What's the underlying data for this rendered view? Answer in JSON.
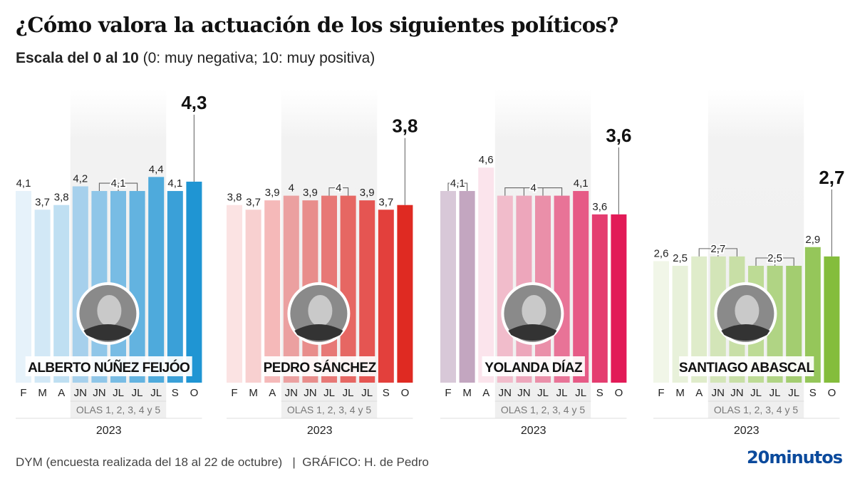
{
  "header": {
    "title": "¿Cómo valora la actuación de los siguientes políticos?",
    "subtitle_bold": "Escala del 0 al 10",
    "subtitle_rest": " (0: muy negativa; 10: muy positiva)"
  },
  "footer": {
    "source": "DYM (encuesta realizada del 18 al 22 de octubre)   |  GRÁFICO: H. de Pedro",
    "logo": "20minutos"
  },
  "chart_data": [
    {
      "type": "bar",
      "name": "ALBERTO NÚÑEZ FEIJÓO",
      "categories": [
        "F",
        "M",
        "A",
        "JN",
        "JN",
        "JL",
        "JL",
        "JL",
        "S",
        "O"
      ],
      "values": [
        4.1,
        3.7,
        3.8,
        4.2,
        4.1,
        4.1,
        4.1,
        4.4,
        4.1,
        4.3
      ],
      "labels": [
        {
          "text": "4,1",
          "bars": [
            0
          ]
        },
        {
          "text": "3,7",
          "bars": [
            1
          ]
        },
        {
          "text": "3,8",
          "bars": [
            2
          ]
        },
        {
          "text": "4,2",
          "bars": [
            3
          ]
        },
        {
          "text": "4,1",
          "bars": [
            4,
            5,
            6
          ]
        },
        {
          "text": "4,4",
          "bars": [
            7
          ]
        },
        {
          "text": "4,1",
          "bars": [
            8
          ]
        },
        {
          "text": "4,3",
          "bars": [
            9
          ],
          "highlight": true
        }
      ],
      "colors": [
        "#e6f2fa",
        "#d2e8f6",
        "#bfdff2",
        "#a6d0ec",
        "#8fc6e8",
        "#78bce4",
        "#63b3e0",
        "#4eaadc",
        "#3aa0d8",
        "#1f95d3"
      ],
      "olas_label": "OLAS 1, 2, 3, 4 y 5",
      "year": "2023"
    },
    {
      "type": "bar",
      "name": "PEDRO SÁNCHEZ",
      "categories": [
        "F",
        "M",
        "A",
        "JN",
        "JN",
        "JL",
        "JL",
        "JL",
        "S",
        "O"
      ],
      "values": [
        3.8,
        3.7,
        3.9,
        4.0,
        3.9,
        4.0,
        4.0,
        3.9,
        3.7,
        3.8
      ],
      "labels": [
        {
          "text": "3,8",
          "bars": [
            0
          ]
        },
        {
          "text": "3,7",
          "bars": [
            1
          ]
        },
        {
          "text": "3,9",
          "bars": [
            2
          ]
        },
        {
          "text": "4",
          "bars": [
            3
          ]
        },
        {
          "text": "3,9",
          "bars": [
            4
          ]
        },
        {
          "text": "4",
          "bars": [
            5,
            6
          ]
        },
        {
          "text": "3,9",
          "bars": [
            7
          ]
        },
        {
          "text": "3,7",
          "bars": [
            8
          ]
        },
        {
          "text": "3,8",
          "bars": [
            9
          ],
          "highlight": true
        }
      ],
      "colors": [
        "#fbe3e3",
        "#f8d0d0",
        "#f5b9b9",
        "#eba0a0",
        "#e88d8b",
        "#e77876",
        "#e66763",
        "#e55552",
        "#e3403c",
        "#df2a22"
      ],
      "olas_label": "OLAS 1, 2, 3, 4 y 5",
      "year": "2023"
    },
    {
      "type": "bar",
      "name": "YOLANDA DÍAZ",
      "categories": [
        "F",
        "M",
        "A",
        "JN",
        "JN",
        "JL",
        "JL",
        "JL",
        "S",
        "O"
      ],
      "values": [
        4.1,
        4.1,
        4.6,
        4.0,
        4.0,
        4.0,
        4.0,
        4.1,
        3.6,
        3.6
      ],
      "labels": [
        {
          "text": "4,1",
          "bars": [
            0,
            1
          ]
        },
        {
          "text": "4,6",
          "bars": [
            2
          ]
        },
        {
          "text": "4",
          "bars": [
            3,
            4,
            5,
            6
          ]
        },
        {
          "text": "4,1",
          "bars": [
            7
          ]
        },
        {
          "text": "3,6",
          "bars": [
            8
          ]
        },
        {
          "text": "3,6",
          "bars": [
            9
          ],
          "highlight": true
        }
      ],
      "colors": [
        "#d8c8d8",
        "#c3a6c0",
        "#fbe4ec",
        "#f1bccb",
        "#eda6bb",
        "#ea8fa9",
        "#e87397",
        "#e65a86",
        "#e43d70",
        "#e21a57"
      ],
      "olas_label": "OLAS 1, 2, 3, 4 y 5",
      "year": "2023"
    },
    {
      "type": "bar",
      "name": "SANTIAGO ABASCAL",
      "categories": [
        "F",
        "M",
        "A",
        "JN",
        "JN",
        "JL",
        "JL",
        "JL",
        "S",
        "O"
      ],
      "values": [
        2.6,
        2.5,
        2.7,
        2.7,
        2.7,
        2.5,
        2.5,
        2.5,
        2.9,
        2.7
      ],
      "labels": [
        {
          "text": "2,6",
          "bars": [
            0
          ]
        },
        {
          "text": "2,5",
          "bars": [
            1
          ]
        },
        {
          "text": "2,7",
          "bars": [
            2,
            3,
            4
          ]
        },
        {
          "text": "2,5",
          "bars": [
            5,
            6,
            7
          ]
        },
        {
          "text": "2,9",
          "bars": [
            8
          ]
        },
        {
          "text": "2,7",
          "bars": [
            9
          ],
          "highlight": true
        }
      ],
      "colors": [
        "#f1f6e8",
        "#e8f1da",
        "#dfecca",
        "#d3e5b8",
        "#c8dfa6",
        "#bddb95",
        "#b0d484",
        "#a3cd70",
        "#95c65a",
        "#84bd3c"
      ],
      "olas_label": "OLAS 1, 2, 3, 4 y 5",
      "year": "2023"
    }
  ]
}
